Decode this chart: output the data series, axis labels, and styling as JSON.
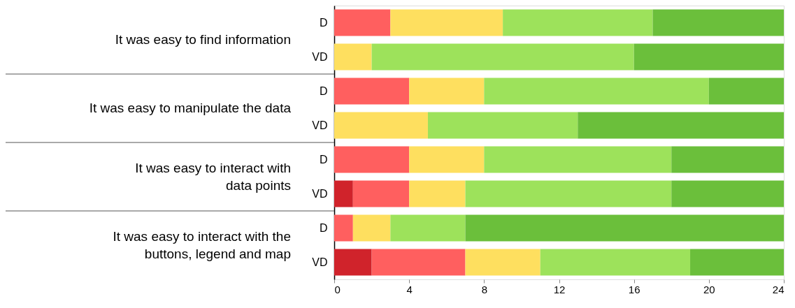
{
  "chart_data": {
    "type": "bar",
    "orientation": "horizontal",
    "stacked": true,
    "categories": [
      "D",
      "VD",
      "D",
      "VD",
      "D",
      "VD",
      "D",
      "VD"
    ],
    "series": [
      {
        "color": "#d0232b",
        "values": [
          0,
          0,
          0,
          0,
          0,
          1,
          0,
          2
        ]
      },
      {
        "color": "#ff5f5f",
        "values": [
          3,
          0,
          4,
          0,
          4,
          3,
          1,
          5
        ]
      },
      {
        "color": "#fedf5f",
        "values": [
          6,
          2,
          4,
          5,
          4,
          3,
          2,
          4
        ]
      },
      {
        "color": "#9de25b",
        "values": [
          8,
          14,
          12,
          8,
          10,
          11,
          4,
          8
        ]
      },
      {
        "color": "#6bbf3b",
        "values": [
          7,
          8,
          4,
          11,
          6,
          6,
          17,
          5
        ]
      }
    ],
    "xlim": [
      0,
      24
    ],
    "xticks": [
      0,
      4,
      8,
      12,
      16,
      20,
      24
    ],
    "grid": false,
    "annotations": [
      "It was easy to find information",
      "It was easy to manipulate the data",
      "It was easy to interact with\ndata points",
      "It was easy to interact with the\nbuttons, legend and map"
    ]
  }
}
